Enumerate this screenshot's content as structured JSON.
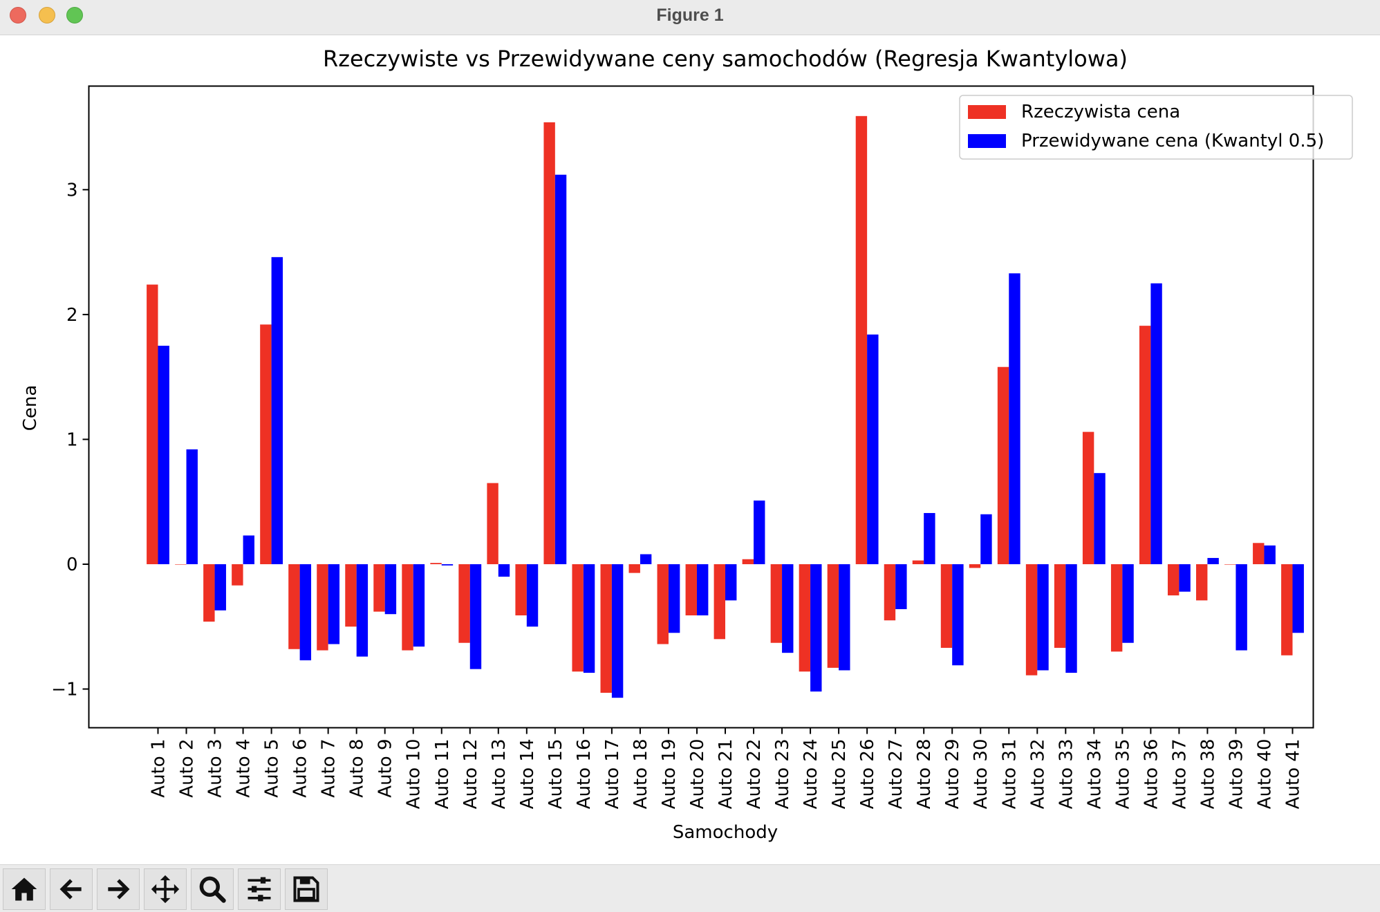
{
  "window": {
    "title": "Figure 1"
  },
  "toolbar": {
    "buttons": [
      {
        "name": "home-button",
        "icon": "home-icon"
      },
      {
        "name": "back-button",
        "icon": "arrow-left-icon"
      },
      {
        "name": "forward-button",
        "icon": "arrow-right-icon"
      },
      {
        "name": "pan-button",
        "icon": "move-icon"
      },
      {
        "name": "zoom-button",
        "icon": "search-icon"
      },
      {
        "name": "configure-subplots-button",
        "icon": "sliders-icon"
      },
      {
        "name": "save-button",
        "icon": "save-icon"
      }
    ]
  },
  "chart_data": {
    "type": "bar",
    "title": "Rzeczywiste vs Przewidywane ceny samochodów (Regresja Kwantylowa)",
    "xlabel": "Samochody",
    "ylabel": "Cena",
    "ylim": [
      -1.31,
      3.83
    ],
    "yticks": [
      -1,
      0,
      1,
      2,
      3
    ],
    "ytick_labels": [
      "−1",
      "0",
      "1",
      "2",
      "3"
    ],
    "grid": false,
    "legend_position": "top-right",
    "categories": [
      "Auto 1",
      "Auto 2",
      "Auto 3",
      "Auto 4",
      "Auto 5",
      "Auto 6",
      "Auto 7",
      "Auto 8",
      "Auto 9",
      "Auto 10",
      "Auto 11",
      "Auto 12",
      "Auto 13",
      "Auto 14",
      "Auto 15",
      "Auto 16",
      "Auto 17",
      "Auto 18",
      "Auto 19",
      "Auto 20",
      "Auto 21",
      "Auto 22",
      "Auto 23",
      "Auto 24",
      "Auto 25",
      "Auto 26",
      "Auto 27",
      "Auto 28",
      "Auto 29",
      "Auto 30",
      "Auto 31",
      "Auto 32",
      "Auto 33",
      "Auto 34",
      "Auto 35",
      "Auto 36",
      "Auto 37",
      "Auto 38",
      "Auto 39",
      "Auto 40",
      "Auto 41"
    ],
    "series": [
      {
        "name": "Rzeczywista cena",
        "color": "#ee3124",
        "values": [
          2.24,
          0.0,
          -0.46,
          -0.17,
          1.92,
          -0.68,
          -0.69,
          -0.5,
          -0.38,
          -0.69,
          0.01,
          -0.63,
          0.65,
          -0.41,
          3.54,
          -0.86,
          -1.03,
          -0.07,
          -0.64,
          -0.41,
          -0.6,
          0.04,
          -0.63,
          -0.86,
          -0.83,
          3.59,
          -0.45,
          0.03,
          -0.67,
          -0.03,
          1.58,
          -0.89,
          -0.67,
          1.06,
          -0.7,
          1.91,
          -0.25,
          -0.29,
          0.0,
          0.17,
          -0.73
        ]
      },
      {
        "name": "Przewidywane cena (Kwantyl 0.5)",
        "color": "#0000ff",
        "values": [
          1.75,
          0.92,
          -0.37,
          0.23,
          2.46,
          -0.77,
          -0.64,
          -0.74,
          -0.4,
          -0.66,
          -0.01,
          -0.84,
          -0.1,
          -0.5,
          3.12,
          -0.87,
          -1.07,
          0.08,
          -0.55,
          -0.41,
          -0.29,
          0.51,
          -0.71,
          -1.02,
          -0.85,
          1.84,
          -0.36,
          0.41,
          -0.81,
          0.4,
          2.33,
          -0.85,
          -0.87,
          0.73,
          -0.63,
          2.25,
          -0.22,
          0.05,
          -0.69,
          0.15,
          -0.55
        ]
      }
    ]
  }
}
